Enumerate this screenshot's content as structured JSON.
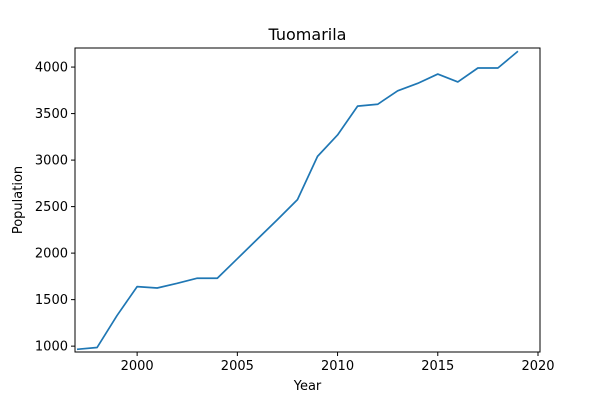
{
  "chart_data": {
    "type": "line",
    "title": "Tuomarila",
    "xlabel": "Year",
    "ylabel": "Population",
    "xlim": [
      1996.9,
      2020.1
    ],
    "ylim": [
      937,
      4205
    ],
    "xticks": [
      2000,
      2005,
      2010,
      2015,
      2020
    ],
    "yticks": [
      1000,
      1500,
      2000,
      2500,
      3000,
      3500,
      4000
    ],
    "grid": false,
    "series": [
      {
        "color": "#1f77b4",
        "x": [
          1997,
          1998,
          1999,
          2000,
          2001,
          2002,
          2003,
          2004,
          2005,
          2006,
          2007,
          2008,
          2009,
          2010,
          2011,
          2012,
          2013,
          2014,
          2015,
          2016,
          2017,
          2018,
          2019
        ],
        "y": [
          966,
          985,
          1330,
          1640,
          1625,
          1675,
          1730,
          1730,
          1940,
          2150,
          2360,
          2575,
          3040,
          3270,
          3580,
          3600,
          3745,
          3825,
          3925,
          3840,
          3990,
          3990,
          4170
        ]
      }
    ]
  }
}
